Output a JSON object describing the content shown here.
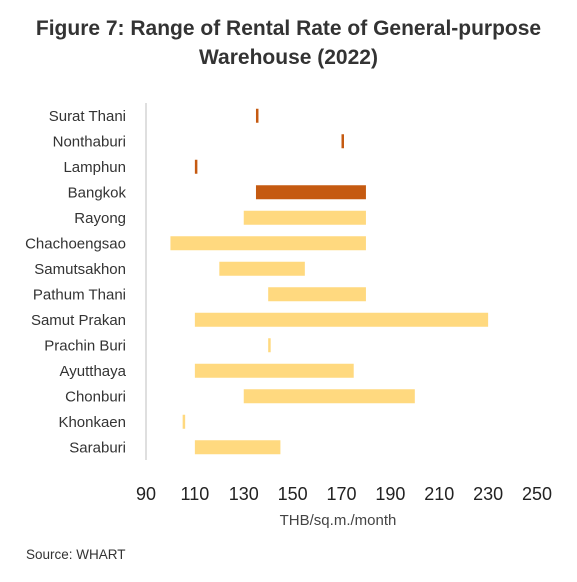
{
  "title_line1": "Figure 7: Range of Rental Rate of General-purpose",
  "title_line2": "Warehouse (2022)",
  "source": "Source: WHART",
  "chart_data": {
    "type": "bar",
    "orientation": "horizontal-range",
    "xlabel": "THB/sq.m./month",
    "xlim": [
      90,
      250
    ],
    "xticks": [
      90,
      110,
      130,
      150,
      170,
      190,
      210,
      230,
      250
    ],
    "grid": false,
    "colors": {
      "light": "#FFD97F",
      "dark": "#C55A11"
    },
    "bars": [
      {
        "category": "Surat Thani",
        "low": 135,
        "high": 136,
        "color": "dark"
      },
      {
        "category": "Nonthaburi",
        "low": 170,
        "high": 171,
        "color": "dark"
      },
      {
        "category": "Lamphun",
        "low": 110,
        "high": 111,
        "color": "dark"
      },
      {
        "category": "Bangkok",
        "low": 135,
        "high": 180,
        "color": "dark"
      },
      {
        "category": "Rayong",
        "low": 130,
        "high": 180,
        "color": "light"
      },
      {
        "category": "Chachoengsao",
        "low": 100,
        "high": 180,
        "color": "light"
      },
      {
        "category": "Samutsakhon",
        "low": 120,
        "high": 155,
        "color": "light"
      },
      {
        "category": "Pathum Thani",
        "low": 140,
        "high": 180,
        "color": "light"
      },
      {
        "category": "Samut Prakan",
        "low": 110,
        "high": 230,
        "color": "light"
      },
      {
        "category": "Prachin Buri",
        "low": 140,
        "high": 141,
        "color": "light"
      },
      {
        "category": "Ayutthaya",
        "low": 110,
        "high": 175,
        "color": "light"
      },
      {
        "category": "Chonburi",
        "low": 130,
        "high": 200,
        "color": "light"
      },
      {
        "category": "Khonkaen",
        "low": 105,
        "high": 106,
        "color": "light"
      },
      {
        "category": "Saraburi",
        "low": 110,
        "high": 145,
        "color": "light"
      }
    ]
  }
}
